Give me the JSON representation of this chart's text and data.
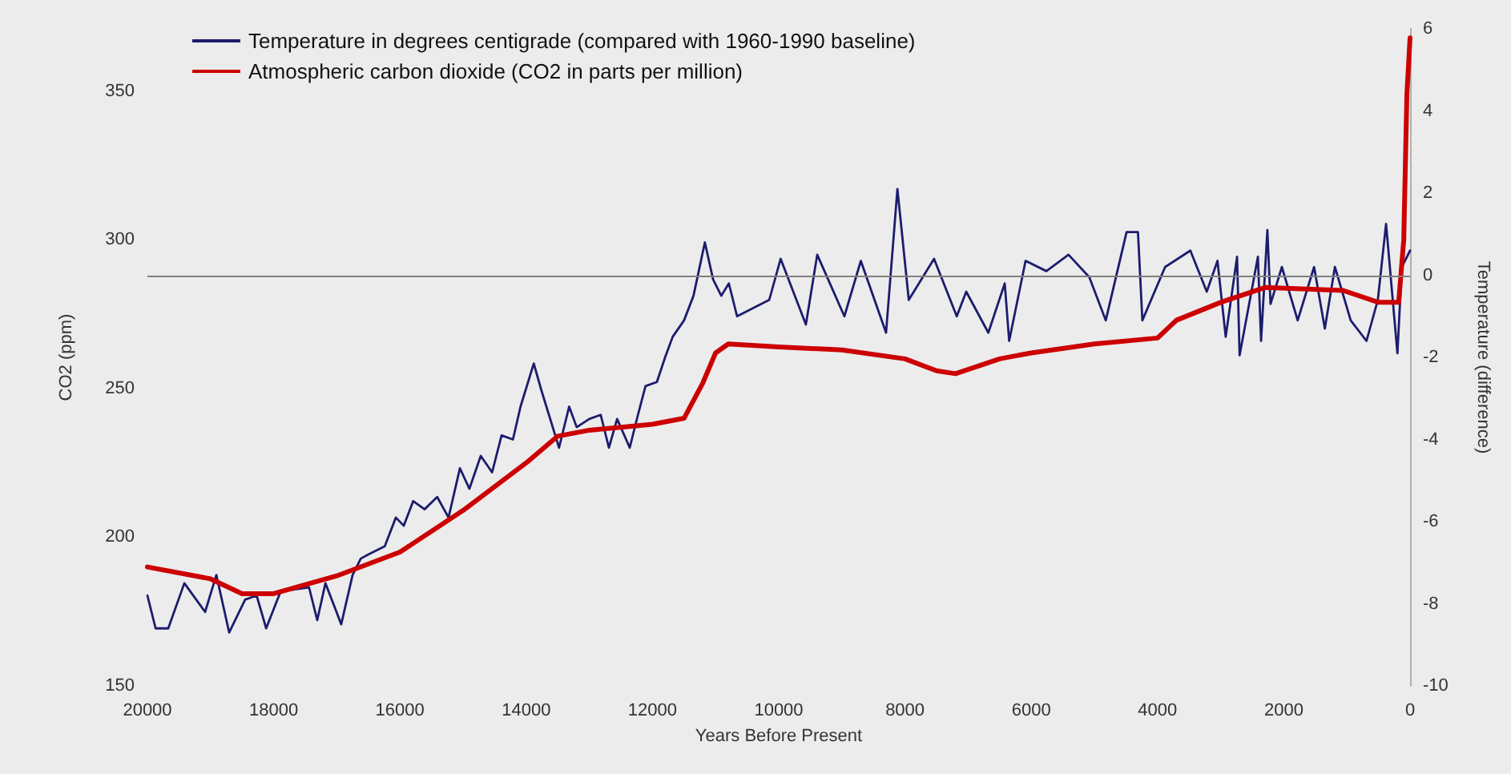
{
  "chart_data": {
    "type": "line",
    "xlabel": "Years Before Present",
    "ylabel": "CO2 (ppm)",
    "y2label": "Temperature (difference)",
    "xlim": [
      20000,
      0
    ],
    "xticks": [
      20000,
      18000,
      16000,
      14000,
      12000,
      10000,
      8000,
      6000,
      4000,
      2000,
      0
    ],
    "ylim": [
      150,
      371
    ],
    "yticks": [
      150,
      200,
      250,
      300,
      350
    ],
    "y2lim": [
      -10,
      6
    ],
    "y2ticks": [
      -10,
      -8,
      -6,
      -4,
      -2,
      0,
      2,
      4,
      6
    ],
    "grid": false,
    "legend": "top left",
    "marker": "none",
    "line_style": "solid",
    "ref_lines": [
      {
        "axis": "y2",
        "value": 0,
        "color": "#808080"
      }
    ],
    "series": [
      {
        "name": "Temperature in degrees centigrade (compared with 1960-1990 baseline)",
        "color": "#1c1c6e",
        "axis": "y2",
        "x": [
          20000,
          19870,
          19670,
          19415,
          19086,
          18908,
          18705,
          18452,
          18270,
          18119,
          17890,
          17440,
          17310,
          17180,
          16930,
          16750,
          16620,
          16500,
          16240,
          16065,
          15940,
          15790,
          15610,
          15410,
          15230,
          15050,
          14900,
          14720,
          14540,
          14390,
          14210,
          14090,
          13880,
          13760,
          13480,
          13320,
          13200,
          13000,
          12820,
          12690,
          12560,
          12360,
          12230,
          12110,
          11930,
          11800,
          11680,
          11500,
          11350,
          11170,
          11040,
          10910,
          10790,
          10660,
          10150,
          9970,
          9570,
          9390,
          8960,
          8700,
          8300,
          8120,
          7940,
          7540,
          7180,
          7030,
          6680,
          6420,
          6350,
          6090,
          5760,
          5410,
          5080,
          4820,
          4490,
          4310,
          4240,
          3880,
          3480,
          3220,
          3050,
          2920,
          2740,
          2700,
          2410,
          2360,
          2260,
          2210,
          2030,
          1780,
          1520,
          1350,
          1190,
          940,
          690,
          510,
          380,
          200,
          130,
          0
        ],
        "values": [
          -7.8,
          -8.6,
          -8.6,
          -7.5,
          -8.2,
          -7.3,
          -8.7,
          -7.9,
          -7.8,
          -8.6,
          -7.7,
          -7.6,
          -8.4,
          -7.5,
          -8.5,
          -7.3,
          -6.9,
          -6.8,
          -6.6,
          -5.9,
          -6.1,
          -5.5,
          -5.7,
          -5.4,
          -5.9,
          -4.7,
          -5.2,
          -4.4,
          -4.8,
          -3.9,
          -4.0,
          -3.2,
          -2.15,
          -2.8,
          -4.2,
          -3.2,
          -3.7,
          -3.5,
          -3.4,
          -4.2,
          -3.5,
          -4.2,
          -3.4,
          -2.7,
          -2.6,
          -2.0,
          -1.5,
          -1.1,
          -0.5,
          0.8,
          -0.1,
          -0.5,
          -0.2,
          -1.0,
          -0.6,
          0.4,
          -1.2,
          0.5,
          -1.0,
          0.35,
          -1.4,
          2.1,
          -0.6,
          0.4,
          -1.0,
          -0.4,
          -1.4,
          -0.2,
          -1.6,
          0.35,
          0.1,
          0.5,
          -0.05,
          -1.1,
          1.05,
          1.05,
          -1.1,
          0.2,
          0.6,
          -0.4,
          0.35,
          -1.5,
          0.45,
          -1.95,
          0.45,
          -1.6,
          1.1,
          -0.7,
          0.2,
          -1.1,
          0.2,
          -1.3,
          0.2,
          -1.1,
          -1.6,
          -0.6,
          1.25,
          -1.9,
          0.2,
          0.6
        ]
      },
      {
        "name": "Atmospheric carbon dioxide (CO2 in parts per million)",
        "color": "#cc0000",
        "x": [
          20000,
          19000,
          18500,
          18000,
          17000,
          16000,
          15000,
          14000,
          13500,
          13000,
          12000,
          11500,
          11200,
          11000,
          10800,
          10000,
          9000,
          8000,
          7500,
          7200,
          6500,
          6000,
          5000,
          4000,
          3700,
          3000,
          2300,
          1060,
          500,
          180,
          100,
          50,
          0
        ],
        "values": [
          190,
          186,
          181,
          181,
          187,
          195,
          209,
          225,
          234,
          236,
          238,
          240,
          252,
          262,
          265,
          264,
          263,
          260,
          256,
          255,
          260,
          262,
          265,
          267,
          273,
          279,
          284,
          283,
          279,
          279,
          300,
          349,
          368
        ]
      }
    ]
  }
}
